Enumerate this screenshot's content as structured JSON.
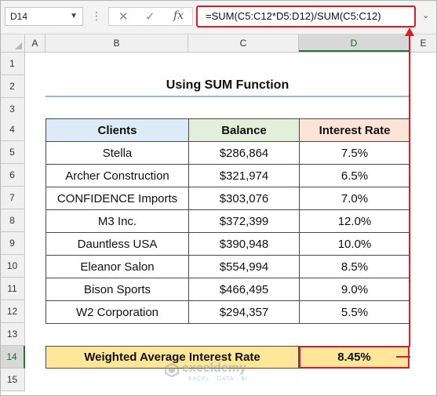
{
  "formula_bar": {
    "name_box": "D14",
    "cancel_glyph": "✕",
    "enter_glyph": "✓",
    "function_label": "fx",
    "formula": "=SUM(C5:C12*D5:D12)/SUM(C5:C12)"
  },
  "columns": [
    "A",
    "B",
    "C",
    "D",
    "E"
  ],
  "rows": [
    "1",
    "2",
    "3",
    "4",
    "5",
    "6",
    "7",
    "8",
    "9",
    "10",
    "11",
    "12",
    "13",
    "14",
    "15"
  ],
  "sheet": {
    "title": "Using SUM Function",
    "headers": {
      "clients": "Clients",
      "balance": "Balance",
      "interest_rate": "Interest Rate"
    },
    "records": [
      {
        "client": "Stella",
        "balance": "$286,864",
        "rate": "7.5%"
      },
      {
        "client": "Archer Construction",
        "balance": "$321,974",
        "rate": "6.5%"
      },
      {
        "client": "CONFIDENCE Imports",
        "balance": "$303,076",
        "rate": "7.0%"
      },
      {
        "client": "M3 Inc.",
        "balance": "$372,399",
        "rate": "12.0%"
      },
      {
        "client": "Dauntless USA",
        "balance": "$390,948",
        "rate": "10.0%"
      },
      {
        "client": "Eleanor Salon",
        "balance": "$554,994",
        "rate": "8.5%"
      },
      {
        "client": "Bison Sports",
        "balance": "$466,495",
        "rate": "9.0%"
      },
      {
        "client": "W2 Corporation",
        "balance": "$294,357",
        "rate": "5.5%"
      }
    ],
    "weighted": {
      "label": "Weighted Average Interest Rate",
      "value": "8.45%"
    }
  },
  "watermark": {
    "name": "exceldemy",
    "tagline": "EXCEL · DATA · BI"
  },
  "colors": {
    "highlight_red": "#e11b22",
    "header_blue": "#ddeaf7",
    "header_green": "#e2efda",
    "header_peach": "#fbe4d6",
    "result_yellow": "#ffe699",
    "excel_green": "#217346"
  }
}
